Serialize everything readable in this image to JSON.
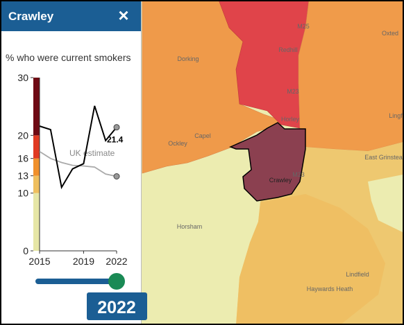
{
  "header": {
    "title": "Crawley",
    "close": "×"
  },
  "chart_data": {
    "type": "line",
    "title": "% who were current smokers",
    "x": [
      2015,
      2016,
      2017,
      2018,
      2019,
      2020,
      2021,
      2022
    ],
    "xlim": [
      2015,
      2022
    ],
    "xticks": [
      2015,
      2019,
      2022
    ],
    "ylim": [
      0,
      30
    ],
    "yticks": [
      0,
      10,
      13,
      16,
      20,
      30
    ],
    "band_colors": [
      "#e6e6a6",
      "#efbf5e",
      "#f0902c",
      "#e03a22",
      "#6e0a14"
    ],
    "series": [
      {
        "color": "#000000",
        "values": [
          21.6,
          21,
          11,
          14.2,
          15.1,
          25.1,
          19.1,
          21.4
        ]
      },
      {
        "name": "UK estimate",
        "color": "#aaaaaa",
        "values": [
          17.2,
          16,
          15.3,
          14.8,
          14.7,
          14.5,
          13.3,
          12.9
        ]
      }
    ]
  },
  "slider": {
    "min": 2015,
    "max": 2022,
    "value": 2022
  },
  "map": {
    "labels": [
      "M25",
      "Redhill",
      "Oxted",
      "Dorking",
      "M23",
      "Lingf",
      "Horley",
      "Capel",
      "Ockley",
      "East Grinstead",
      "M23",
      "Crawley",
      "Horsham",
      "Lindfield",
      "Haywards Heath"
    ]
  }
}
